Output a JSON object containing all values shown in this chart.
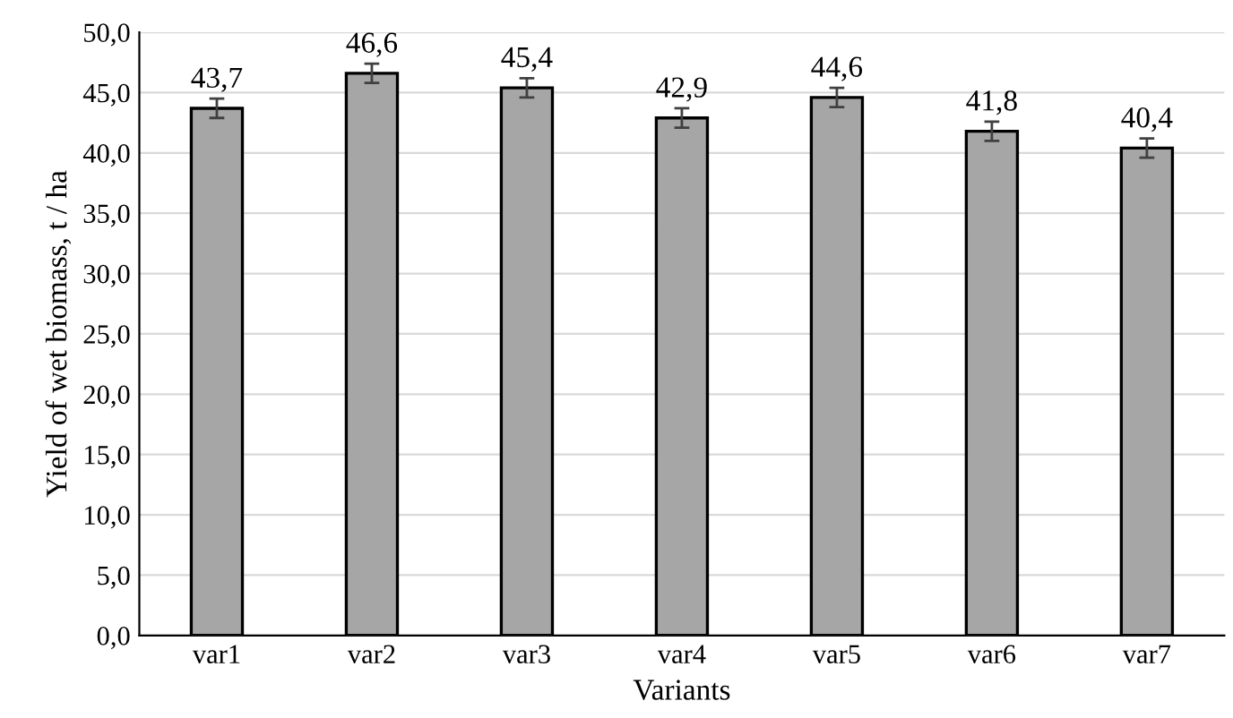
{
  "chart_data": {
    "type": "bar",
    "xlabel": "Variants",
    "ylabel": "Yield of wet biomass, t / ha",
    "categories": [
      "var1",
      "var2",
      "var3",
      "var4",
      "var5",
      "var6",
      "var7"
    ],
    "values": [
      43.7,
      46.6,
      45.4,
      42.9,
      44.6,
      41.8,
      40.4
    ],
    "value_labels": [
      "43,7",
      "46,6",
      "45,4",
      "42,9",
      "44,6",
      "41,8",
      "40,4"
    ],
    "errors": [
      0.8,
      0.8,
      0.8,
      0.8,
      0.8,
      0.8,
      0.8
    ],
    "color": "#a6a6a6",
    "ylim": [
      0,
      50
    ],
    "yticks": [
      {
        "value": 0,
        "label": "0,0"
      },
      {
        "value": 5,
        "label": "5,0"
      },
      {
        "value": 10,
        "label": "10,0"
      },
      {
        "value": 15,
        "label": "15,0"
      },
      {
        "value": 20,
        "label": "20,0"
      },
      {
        "value": 25,
        "label": "25,0"
      },
      {
        "value": 30,
        "label": "30,0"
      },
      {
        "value": 35,
        "label": "35,0"
      },
      {
        "value": 40,
        "label": "40,0"
      },
      {
        "value": 45,
        "label": "45,0"
      },
      {
        "value": 50,
        "label": "50,0"
      }
    ],
    "grid": "y",
    "legend": false
  }
}
